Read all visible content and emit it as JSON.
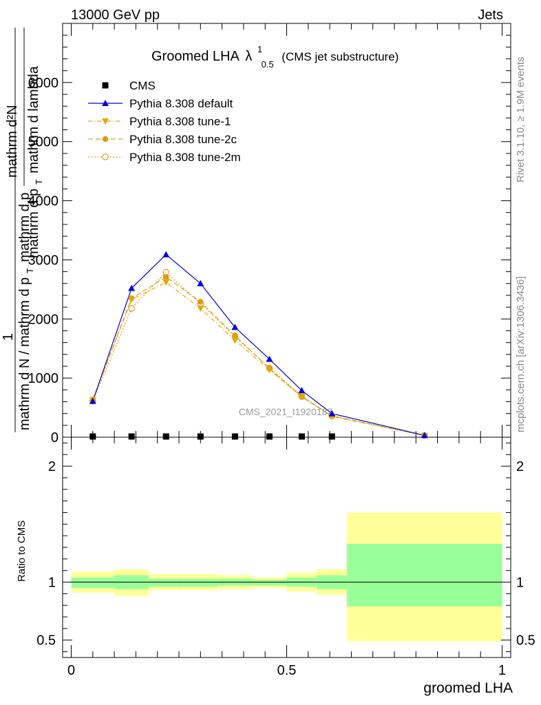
{
  "header": {
    "left": "13000 GeV pp",
    "right": "Jets"
  },
  "side_labels": {
    "rivet": "Rivet 3.1.10, ≥ 1.9M events",
    "mcplots": "mcplots.cern.ch [arXiv:1306.3436]"
  },
  "chart_data": [
    {
      "type": "line",
      "title_main": "Groomed LHA",
      "title_lambda": "λ",
      "title_sup": "1",
      "title_sub": "0.5",
      "title_suffix": "(CMS jet substructure)",
      "watermark": "CMS_2021_I1920187",
      "ylabel_top": "mathrm d²N",
      "ylabel_top_frac": "mathrm d p",
      "ylabel_top_frac_sub": "T",
      "ylabel_top_frac_tail": "mathrm d lambda",
      "ylabel_one": "1",
      "ylabel_bottom": "mathrm d N / mathrm d p",
      "ylabel_bottom_sub": "T",
      "ylabel_bottom_tail": "mathrm d p",
      "xlim": [
        -0.02,
        1.02
      ],
      "ylim": [
        0,
        7000
      ],
      "yticks": [
        0,
        1000,
        2000,
        3000,
        4000,
        5000,
        6000
      ],
      "ytick_labels": [
        "0",
        "1000",
        "2000",
        "3000",
        "4000",
        "5000",
        "6000"
      ],
      "grid": false,
      "legend_position": "top-left",
      "series": [
        {
          "name": "CMS",
          "marker": "square",
          "color": "#000000",
          "x": [
            0.05,
            0.14,
            0.22,
            0.3,
            0.38,
            0.46,
            0.535,
            0.605
          ],
          "y": [
            0,
            0,
            0,
            0,
            0,
            0,
            0,
            0
          ]
        },
        {
          "name": "Pythia 8.308 default",
          "marker": "triangle-up",
          "color": "#0000dd",
          "dash": "",
          "x": [
            0.05,
            0.14,
            0.22,
            0.3,
            0.38,
            0.46,
            0.535,
            0.605,
            0.82
          ],
          "y": [
            610,
            2520,
            3090,
            2600,
            1860,
            1320,
            790,
            400,
            30
          ]
        },
        {
          "name": "Pythia 8.308 tune-1",
          "marker": "triangle-down",
          "color": "#e0a800",
          "dash": "6,3,1.5,3",
          "x": [
            0.05,
            0.14,
            0.22,
            0.3,
            0.38,
            0.46,
            0.535,
            0.605,
            0.82
          ],
          "y": [
            630,
            2330,
            2620,
            2180,
            1640,
            1140,
            690,
            350,
            28
          ]
        },
        {
          "name": "Pythia 8.308 tune-2c",
          "marker": "circle-filled",
          "color": "#e09a10",
          "dash": "7,4",
          "x": [
            0.05,
            0.14,
            0.22,
            0.3,
            0.38,
            0.46,
            0.535,
            0.605,
            0.82
          ],
          "y": [
            640,
            2350,
            2710,
            2290,
            1720,
            1160,
            680,
            360,
            30
          ]
        },
        {
          "name": "Pythia 8.308 tune-2m",
          "marker": "circle-open",
          "color": "#e09a10",
          "dash": "2,2.5",
          "x": [
            0.05,
            0.14,
            0.22,
            0.3,
            0.38,
            0.46,
            0.535,
            0.605,
            0.82
          ],
          "y": [
            610,
            2180,
            2790,
            2260,
            1700,
            1170,
            700,
            360,
            29
          ]
        }
      ]
    },
    {
      "type": "area",
      "ylabel": "Ratio to CMS",
      "xlabel": "groomed LHA",
      "xlim": [
        -0.02,
        1.02
      ],
      "ylim": [
        0.35,
        2.25
      ],
      "yticks": [
        0.5,
        1,
        2
      ],
      "ytick_labels": [
        "0.5",
        "1",
        "2"
      ],
      "xticks": [
        0,
        0.5,
        1
      ],
      "xtick_labels": [
        "0",
        "0.5",
        "1"
      ],
      "reference_line": 1,
      "bands": {
        "bin_edges": [
          0.0,
          0.1,
          0.18,
          0.26,
          0.34,
          0.42,
          0.5,
          0.57,
          0.64,
          1.0
        ],
        "inner": [
          [
            0.95,
            1.04
          ],
          [
            0.94,
            1.06
          ],
          [
            0.96,
            1.03
          ],
          [
            0.96,
            1.03
          ],
          [
            0.97,
            1.03
          ],
          [
            0.97,
            1.02
          ],
          [
            0.96,
            1.04
          ],
          [
            0.94,
            1.06
          ],
          [
            0.79,
            1.33
          ]
        ],
        "outer": [
          [
            0.91,
            1.09
          ],
          [
            0.88,
            1.11
          ],
          [
            0.93,
            1.07
          ],
          [
            0.93,
            1.07
          ],
          [
            0.94,
            1.06
          ],
          [
            0.95,
            1.04
          ],
          [
            0.92,
            1.08
          ],
          [
            0.89,
            1.11
          ],
          [
            0.49,
            1.6
          ]
        ],
        "inner_color": "#99ff99",
        "outer_color": "#ffff99"
      }
    }
  ]
}
